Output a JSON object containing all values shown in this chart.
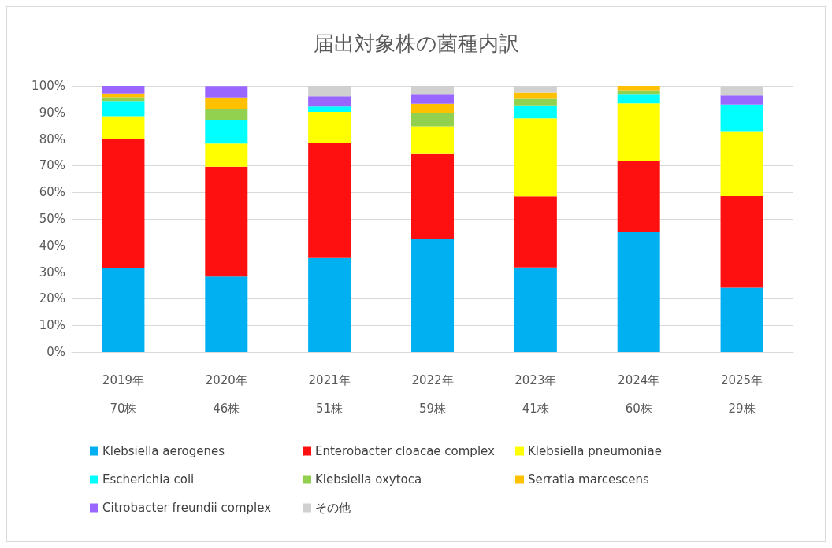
{
  "chart_data": {
    "type": "bar",
    "stacked": true,
    "title": "届出対象株の菌種内訳",
    "categories": [
      "2019年\n70株",
      "2020年\n46株",
      "2021年\n51株",
      "2022年\n59株",
      "2023年\n41株",
      "2024年\n60株",
      "2025年\n29株"
    ],
    "series": [
      {
        "name": "Klebsiella aerogenes",
        "color": "#00b0f0",
        "values": [
          31.4,
          28.3,
          35.3,
          42.4,
          31.7,
          45.0,
          24.1
        ]
      },
      {
        "name": "Enterobacter cloacae complex",
        "color": "#ff1010",
        "values": [
          48.6,
          41.3,
          43.1,
          32.2,
          26.8,
          26.7,
          34.5
        ]
      },
      {
        "name": "Klebsiella pneumoniae",
        "color": "#ffff00",
        "values": [
          8.6,
          8.7,
          11.8,
          10.2,
          29.3,
          21.7,
          24.1
        ]
      },
      {
        "name": "Escherichia coli",
        "color": "#00ffff",
        "values": [
          5.7,
          8.7,
          2.0,
          0,
          4.9,
          3.3,
          10.3
        ]
      },
      {
        "name": "Klebsiella oxytoca",
        "color": "#92d050",
        "values": [
          1.4,
          4.3,
          0,
          5.1,
          2.4,
          1.7,
          0
        ]
      },
      {
        "name": "Serratia marcescens",
        "color": "#ffc000",
        "values": [
          1.4,
          4.3,
          0,
          3.4,
          2.4,
          1.7,
          0
        ]
      },
      {
        "name": "Citrobacter freundii complex",
        "color": "#9966ff",
        "values": [
          2.9,
          4.3,
          3.9,
          3.4,
          0,
          0,
          3.4
        ]
      },
      {
        "name": "その他",
        "color": "#d0d0d0",
        "values": [
          0,
          0,
          3.9,
          3.4,
          2.4,
          0,
          3.4
        ]
      }
    ],
    "ylim": [
      0,
      100
    ],
    "yticks": [
      {
        "value": 0,
        "label": "0%"
      },
      {
        "value": 10,
        "label": "10%"
      },
      {
        "value": 20,
        "label": "20%"
      },
      {
        "value": 30,
        "label": "30%"
      },
      {
        "value": 40,
        "label": "40%"
      },
      {
        "value": 50,
        "label": "50%"
      },
      {
        "value": 60,
        "label": "60%"
      },
      {
        "value": 70,
        "label": "70%"
      },
      {
        "value": 80,
        "label": "80%"
      },
      {
        "value": 90,
        "label": "90%"
      },
      {
        "value": 100,
        "label": "100%"
      }
    ],
    "grid": "y",
    "legend": "bottom"
  }
}
